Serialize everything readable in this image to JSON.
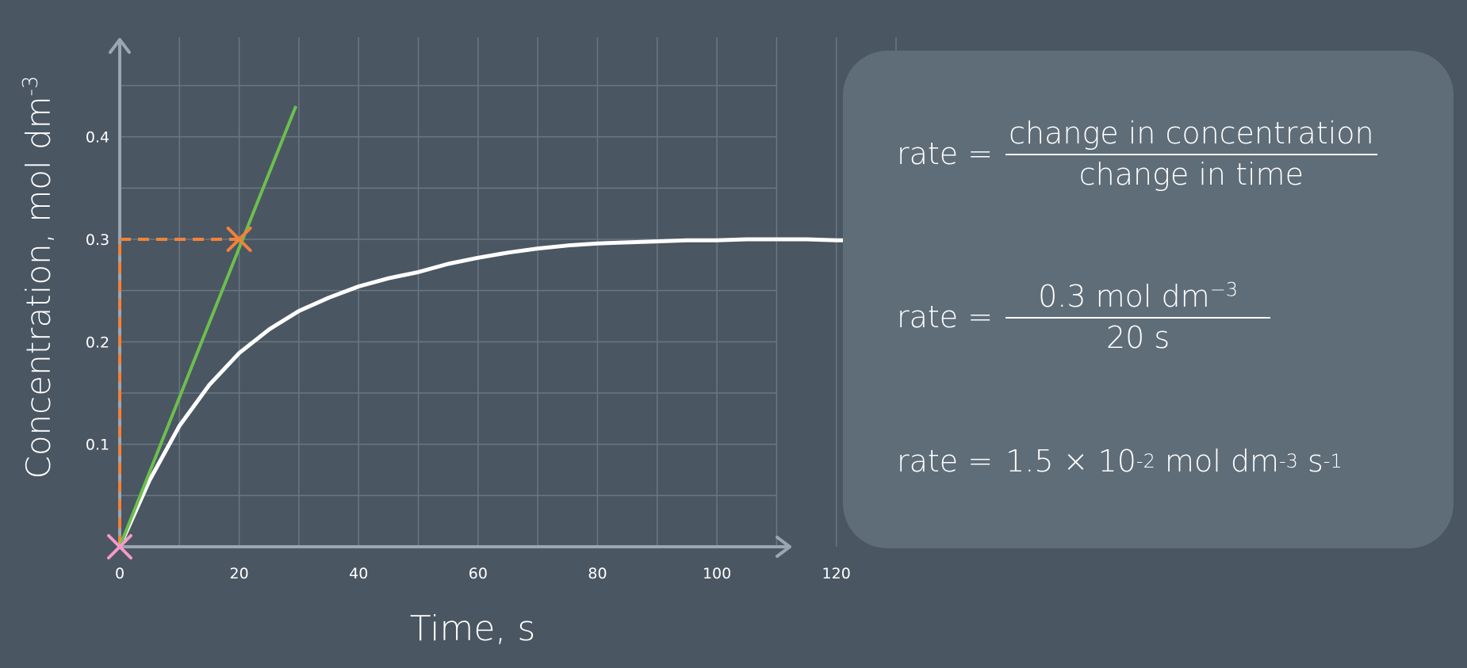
{
  "chart_data": {
    "type": "line",
    "xlabel": "Time, s",
    "ylabel": "Concentration, mol dm",
    "ylabel_sup": "-3",
    "x_ticks": [
      0,
      20,
      40,
      60,
      80,
      100,
      120
    ],
    "y_ticks": [
      0.1,
      0.2,
      0.3,
      0.4
    ],
    "x_tick_labels": [
      "0",
      "20",
      "40",
      "60",
      "80",
      "100",
      "120"
    ],
    "y_tick_labels": [
      "0.1",
      "0.2",
      "0.3",
      "0.4"
    ],
    "xlim": [
      0,
      130
    ],
    "ylim": [
      0,
      0.45
    ],
    "grid": true,
    "series": [
      {
        "kind": "curve",
        "color": "#ffffff",
        "x": [
          0,
          5,
          10,
          15,
          20,
          25,
          30,
          35,
          40,
          45,
          50,
          55,
          60,
          65,
          70,
          75,
          80,
          85,
          90,
          95,
          100,
          105,
          110,
          115,
          120,
          125,
          130
        ],
        "y": [
          0,
          0.065,
          0.118,
          0.158,
          0.189,
          0.212,
          0.23,
          0.243,
          0.254,
          0.262,
          0.268,
          0.276,
          0.282,
          0.287,
          0.291,
          0.294,
          0.296,
          0.297,
          0.298,
          0.299,
          0.299,
          0.3,
          0.3,
          0.3,
          0.299,
          0.299,
          0.298
        ]
      },
      {
        "kind": "tangent",
        "color": "#6cbf4e",
        "x": [
          0,
          29.5
        ],
        "y": [
          0,
          0.43
        ]
      }
    ],
    "guides": {
      "color": "#f0823a",
      "point": [
        20,
        0.3
      ]
    },
    "markers": [
      {
        "name": "tangent-point-marker",
        "x": 20,
        "y": 0.3,
        "color": "#f0823a"
      },
      {
        "name": "origin-marker",
        "x": 0,
        "y": 0,
        "color": "#f59ac8"
      }
    ]
  },
  "equations": {
    "eq1": {
      "lhs": "rate =",
      "num": "change in concentration",
      "den": "change in time"
    },
    "eq2": {
      "lhs": "rate =",
      "num": "0.3 mol dm",
      "num_sup": "−3",
      "den": "20 s"
    },
    "eq3": {
      "lhs": "rate =",
      "coef": "1.5 × 10",
      "coef_sup": "-2",
      "unit1": " mol dm",
      "unit1_sup": "-3",
      "unit2": " s",
      "unit2_sup": "-1"
    }
  },
  "colors": {
    "background": "#4a5662",
    "panel": "#5f6d78",
    "grid": "#6a7783",
    "axis": "#9aa6b0"
  }
}
